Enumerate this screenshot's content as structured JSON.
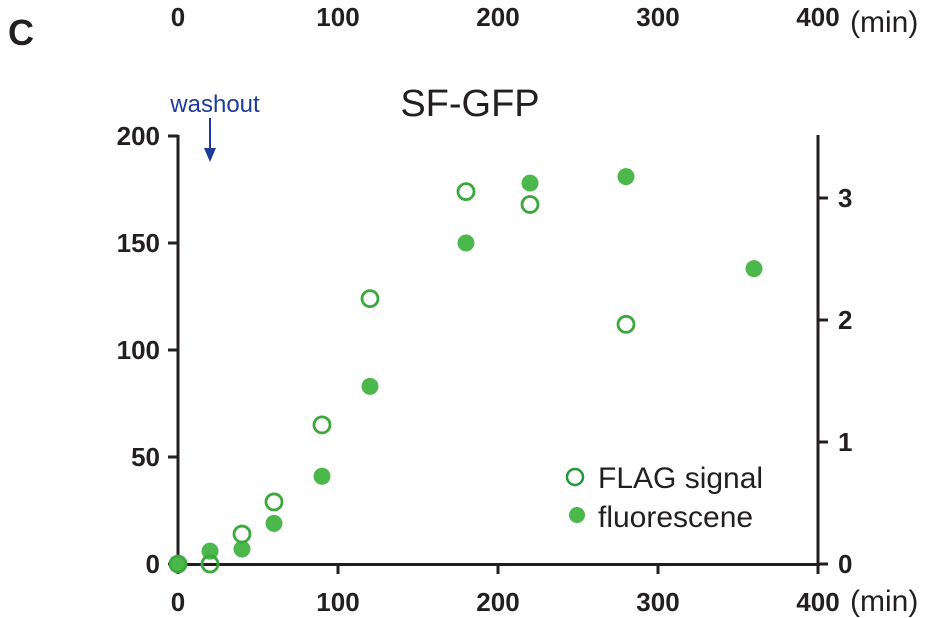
{
  "panel_label": "C",
  "top_axis": {
    "ticks": [
      "0",
      "100",
      "200",
      "300",
      "400"
    ],
    "unit": "(min)"
  },
  "colors": {
    "open": "#3aa83a",
    "filled": "#4cb84c",
    "axis": "#231f20",
    "annotation": "#1f3b9a"
  },
  "chart_data": {
    "type": "scatter",
    "title": "SF-GFP",
    "xlabel": "",
    "x_unit": "(min)",
    "xlim": [
      0,
      400
    ],
    "xticks": [
      "0",
      "100",
      "200",
      "300",
      "400"
    ],
    "ylim_left": [
      0,
      200
    ],
    "yticks_left": [
      "0",
      "50",
      "100",
      "150",
      "200"
    ],
    "ylim_right": [
      0,
      3.5
    ],
    "yticks_right": [
      "0",
      "1",
      "2",
      "3"
    ],
    "grid": false,
    "legend_position": "bottom-right",
    "annotation": {
      "text": "washout",
      "x": 20
    },
    "series": [
      {
        "name": "FLAG signal",
        "marker": "open-circle",
        "axis": "left",
        "x": [
          0,
          20,
          40,
          60,
          90,
          120,
          180,
          220,
          280
        ],
        "y": [
          0,
          0,
          14,
          29,
          65,
          124,
          174,
          168,
          112
        ]
      },
      {
        "name": "fluorescene",
        "marker": "filled-circle",
        "axis": "left",
        "x": [
          0,
          20,
          40,
          60,
          90,
          120,
          180,
          220,
          280,
          360
        ],
        "y": [
          0,
          6,
          7,
          19,
          41,
          83,
          150,
          178,
          181,
          138
        ]
      }
    ]
  }
}
